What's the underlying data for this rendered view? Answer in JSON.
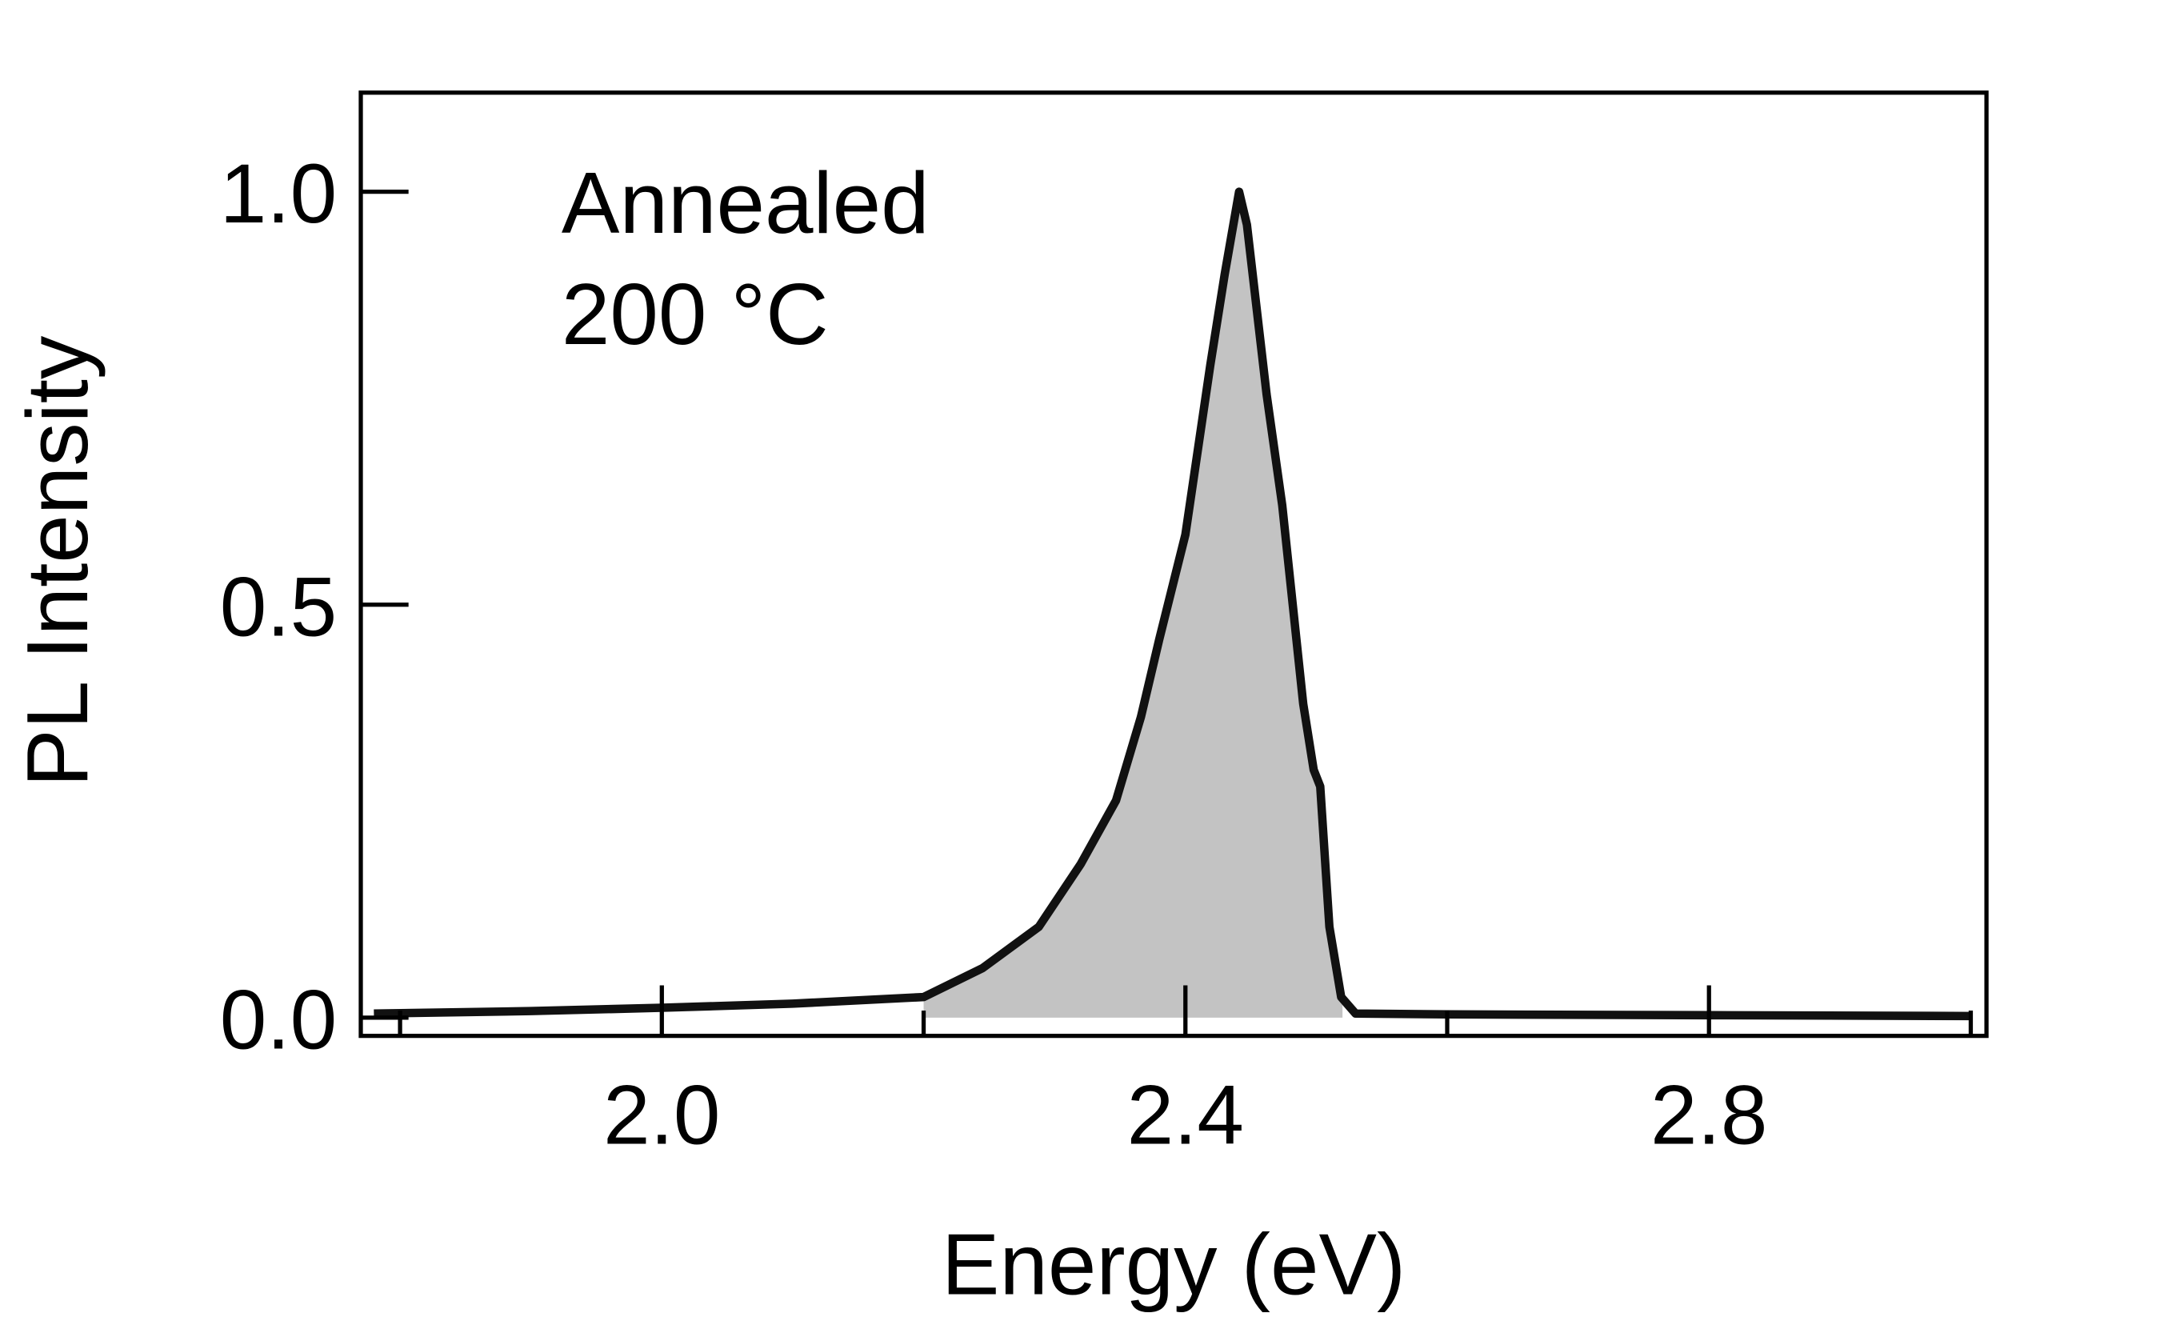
{
  "chart_data": {
    "type": "area",
    "title": "",
    "xlabel": "Energy (eV)",
    "ylabel": "PL Intensity",
    "xlim": [
      1.77,
      3.012
    ],
    "ylim": [
      -0.022,
      1.12
    ],
    "xticks": [
      {
        "value": 2.0,
        "label": "2.0"
      },
      {
        "value": 2.4,
        "label": "2.4"
      },
      {
        "value": 2.8,
        "label": "2.8"
      }
    ],
    "xminor": [
      1.8,
      2.2,
      2.6,
      3.0
    ],
    "yticks": [
      {
        "value": 0.0,
        "label": "0.0"
      },
      {
        "value": 0.5,
        "label": "0.5"
      },
      {
        "value": 1.0,
        "label": "1.0"
      }
    ],
    "grid": false,
    "annotation": [
      "Annealed",
      "200 °C"
    ],
    "line_color": "#111111",
    "fill_color": "#c3c3c3",
    "fill_range": [
      2.2,
      2.52
    ],
    "series": [
      {
        "x": [
          1.78,
          1.9,
          2.0,
          2.1,
          2.2,
          2.245,
          2.288,
          2.32,
          2.347,
          2.366,
          2.38,
          2.4,
          2.419,
          2.43,
          2.441,
          2.447,
          2.462,
          2.474,
          2.49,
          2.498,
          2.503,
          2.51,
          2.519,
          2.53,
          2.6,
          2.8,
          3.0
        ],
        "y": [
          0.005,
          0.008,
          0.012,
          0.017,
          0.025,
          0.06,
          0.11,
          0.186,
          0.263,
          0.364,
          0.458,
          0.585,
          0.79,
          0.9,
          1.0,
          0.96,
          0.755,
          0.62,
          0.38,
          0.3,
          0.28,
          0.11,
          0.025,
          0.005,
          0.004,
          0.003,
          0.002
        ]
      }
    ]
  }
}
